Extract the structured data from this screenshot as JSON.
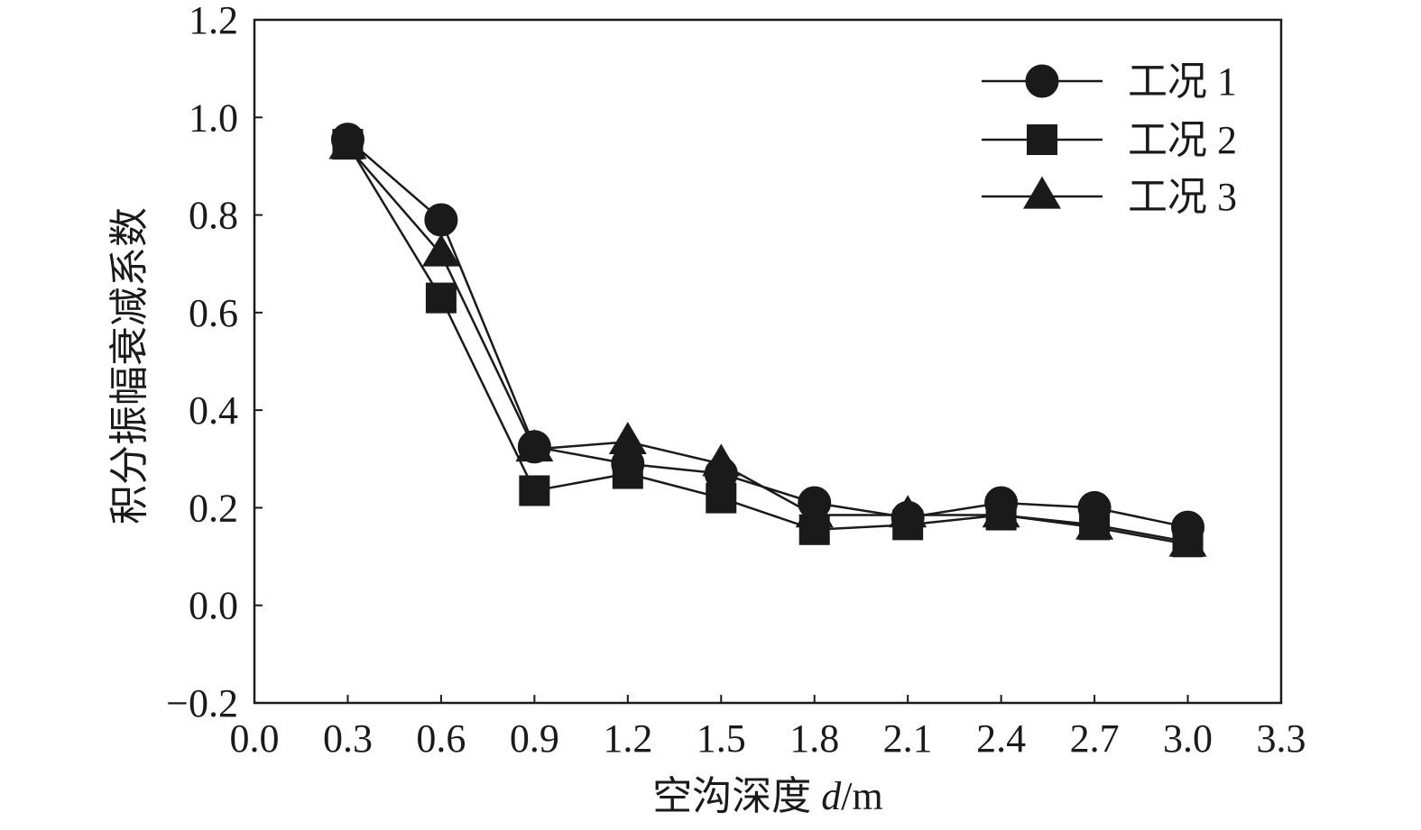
{
  "chart_data": {
    "type": "line",
    "xlabel_prefix": "空沟深度 ",
    "xlabel_var": "d",
    "xlabel_unit": "/m",
    "ylabel": "积分振幅衰减系数",
    "xlim": [
      0.0,
      3.3
    ],
    "ylim": [
      -0.2,
      1.2
    ],
    "x_ticks": [
      "0.0",
      "0.3",
      "0.6",
      "0.9",
      "1.2",
      "1.5",
      "1.8",
      "2.1",
      "2.4",
      "2.7",
      "3.0",
      "3.3"
    ],
    "y_ticks": [
      "−0.2",
      "0.0",
      "0.2",
      "0.4",
      "0.6",
      "0.8",
      "1.0",
      "1.2"
    ],
    "grid": false,
    "legend_position": "top-right",
    "line_color": "#1a1a1a",
    "x": [
      0.3,
      0.6,
      0.9,
      1.2,
      1.5,
      1.8,
      2.1,
      2.4,
      2.7,
      3.0
    ],
    "series": [
      {
        "name": "工况 1",
        "marker": "circle",
        "values": [
          0.955,
          0.79,
          0.325,
          0.29,
          0.27,
          0.21,
          0.18,
          0.21,
          0.2,
          0.16
        ]
      },
      {
        "name": "工况 2",
        "marker": "square",
        "values": [
          0.945,
          0.63,
          0.235,
          0.27,
          0.22,
          0.155,
          0.165,
          0.185,
          0.165,
          0.13
        ]
      },
      {
        "name": "工况 3",
        "marker": "triangle",
        "values": [
          0.94,
          0.72,
          0.32,
          0.335,
          0.29,
          0.185,
          0.185,
          0.185,
          0.16,
          0.125
        ]
      }
    ]
  }
}
